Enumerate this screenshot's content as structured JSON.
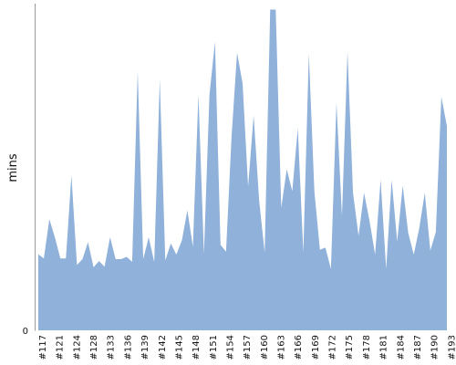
{
  "chart_data": {
    "type": "area",
    "ylabel": "mins",
    "y_tick_labels": [
      "0"
    ],
    "ylim": [
      0,
      100
    ],
    "x_tick_labels": [
      "#117",
      "#121",
      "#124",
      "#128",
      "#133",
      "#136",
      "#139",
      "#142",
      "#145",
      "#148",
      "#151",
      "#154",
      "#157",
      "#160",
      "#163",
      "#166",
      "#169",
      "#172",
      "#175",
      "#178",
      "#181",
      "#184",
      "#187",
      "#190",
      "#193"
    ],
    "values": [
      23.3,
      22,
      34,
      28.5,
      22,
      22,
      47.5,
      20,
      21.8,
      27,
      19.3,
      21.2,
      19.5,
      28.5,
      21.8,
      21.8,
      22.5,
      21,
      79.4,
      21.8,
      28.5,
      20.9,
      76.8,
      21.4,
      26.6,
      23.2,
      27.5,
      36.7,
      25.6,
      72.1,
      23.4,
      72.1,
      88.3,
      26.2,
      24.1,
      59.2,
      85,
      75.6,
      44,
      65.8,
      39.7,
      23.8,
      98.2,
      98.2,
      37.5,
      49.3,
      42.6,
      61.9,
      23.8,
      84.7,
      42.6,
      24.7,
      25.3,
      18.8,
      69.7,
      35,
      85.3,
      42.1,
      28.9,
      42.1,
      33.4,
      23.2,
      46.1,
      18.8,
      46.1,
      27.2,
      44.3,
      29.8,
      23.2,
      31.3,
      42.1,
      24.4,
      30.1,
      71.5,
      62.5
    ],
    "colors": {
      "area": "#8fb1da",
      "axis": "#999999"
    }
  }
}
